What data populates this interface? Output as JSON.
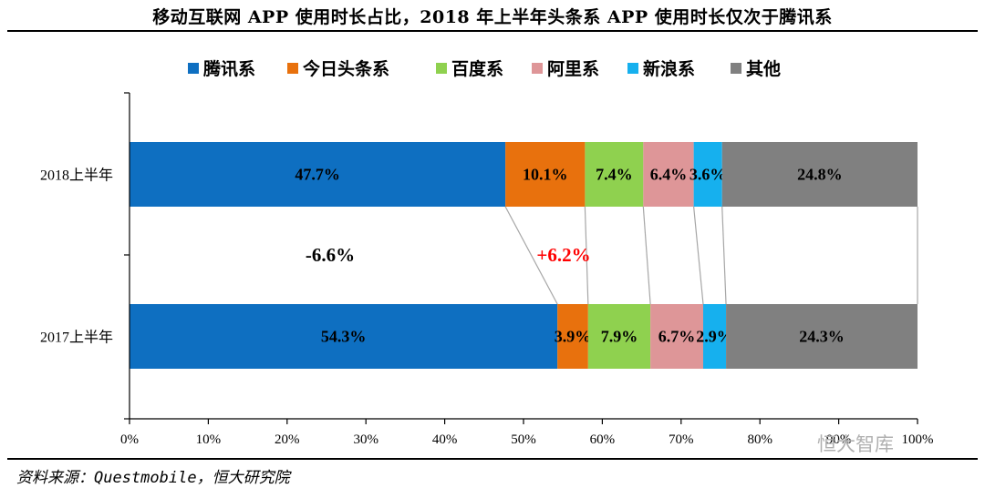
{
  "title": "移动互联网 APP 使用时长占比，2018 年上半年头条系 APP 使用时长仅次于腾讯系",
  "source": "资料来源：Questmobile，恒大研究院",
  "watermark": "恒大智库",
  "chart_data": {
    "type": "bar",
    "orientation": "horizontal",
    "stacked": true,
    "categories": [
      "2018上半年",
      "2017上半年"
    ],
    "series": [
      {
        "name": "腾讯系",
        "color": "#0e6fc1",
        "values": [
          47.7,
          54.3
        ],
        "labels": [
          "47.7%",
          "54.3%"
        ]
      },
      {
        "name": "今日头条系",
        "color": "#e8710d",
        "values": [
          10.1,
          3.9
        ],
        "labels": [
          "10.1%",
          "3.9%"
        ]
      },
      {
        "name": "百度系",
        "color": "#8fd14f",
        "values": [
          7.4,
          7.9
        ],
        "labels": [
          "7.4%",
          "7.9%"
        ]
      },
      {
        "name": "阿里系",
        "color": "#de9698",
        "values": [
          6.4,
          6.7
        ],
        "labels": [
          "6.4%",
          "6.7%"
        ]
      },
      {
        "name": "新浪系",
        "color": "#16b0ee",
        "values": [
          3.6,
          2.9
        ],
        "labels": [
          "3.6%",
          "2.9%"
        ]
      },
      {
        "name": "其他",
        "color": "#808080",
        "values": [
          24.8,
          24.3
        ],
        "labels": [
          "24.8%",
          "24.3%"
        ]
      }
    ],
    "xlim": [
      0,
      100
    ],
    "xticks": [
      "0%",
      "10%",
      "20%",
      "30%",
      "40%",
      "50%",
      "60%",
      "70%",
      "80%",
      "90%",
      "100%"
    ],
    "legend_position": "top",
    "grid": false,
    "annotations": [
      {
        "text": "-6.6%",
        "color": "#000000"
      },
      {
        "text": "+6.2%",
        "color": "#ff0000"
      }
    ]
  }
}
